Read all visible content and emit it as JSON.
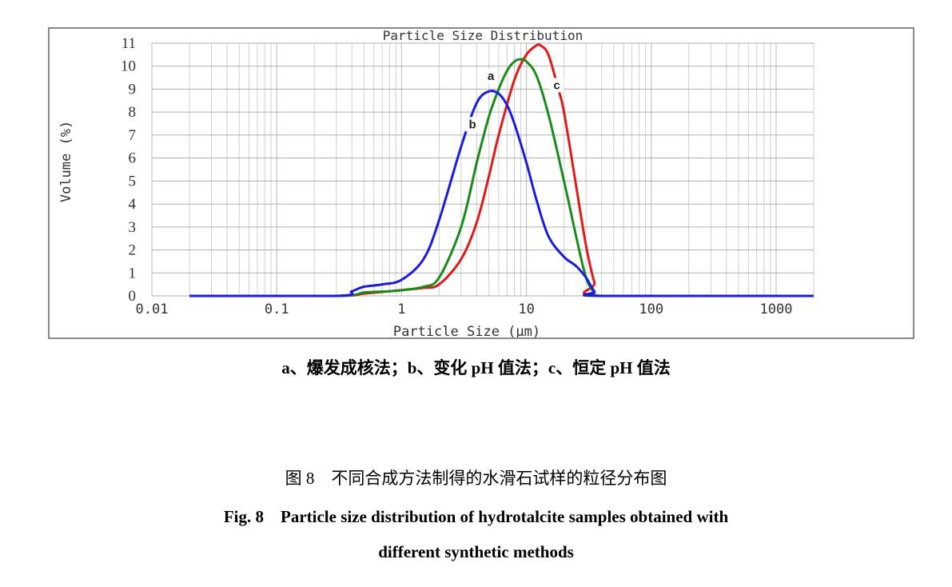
{
  "chart_data": {
    "type": "line",
    "title": "Particle Size Distribution",
    "xlabel": "Particle Size (μm)",
    "ylabel": "Volume (%)",
    "x_scale": "log",
    "xlim": [
      0.01,
      2000
    ],
    "ylim": [
      0,
      11
    ],
    "x_ticks": [
      0.01,
      0.1,
      1,
      10,
      100,
      1000
    ],
    "x_tick_labels": [
      "0.01",
      "0.1",
      "1",
      "10",
      "100",
      "1000"
    ],
    "y_ticks": [
      0,
      1,
      2,
      3,
      4,
      5,
      6,
      7,
      8,
      9,
      10,
      11
    ],
    "y_tick_labels": [
      "0",
      "1",
      "2",
      "3",
      "4",
      "5",
      "6",
      "7",
      "8",
      "9",
      "10",
      "11"
    ],
    "grid": true,
    "series": [
      {
        "name": "a",
        "color": "#1a8a1a",
        "x": [
          0.02,
          0.3,
          0.5,
          0.8,
          1.0,
          1.5,
          2.0,
          3.0,
          4.0,
          5.0,
          6.0,
          7.0,
          8.0,
          9.0,
          10.0,
          12.0,
          15.0,
          20.0,
          25.0,
          30.0,
          35.0,
          40.0,
          2000
        ],
        "y": [
          0,
          0,
          0.15,
          0.2,
          0.25,
          0.4,
          0.8,
          3.0,
          5.8,
          7.8,
          9.0,
          9.8,
          10.2,
          10.3,
          10.2,
          9.6,
          7.9,
          5.0,
          2.6,
          0.8,
          0.15,
          0,
          0
        ]
      },
      {
        "name": "b",
        "color": "#1a1ae0",
        "x": [
          0.02,
          0.3,
          0.4,
          0.5,
          0.7,
          1.0,
          1.5,
          2.0,
          3.0,
          4.0,
          5.0,
          6.0,
          7.0,
          8.0,
          10.0,
          12.0,
          15.0,
          20.0,
          25.0,
          30.0,
          35.0,
          40.0,
          2000
        ],
        "y": [
          0,
          0,
          0.2,
          0.4,
          0.5,
          0.7,
          1.6,
          3.3,
          6.5,
          8.4,
          8.9,
          8.8,
          8.3,
          7.5,
          5.8,
          4.2,
          2.6,
          1.7,
          1.3,
          0.8,
          0.2,
          0,
          0
        ]
      },
      {
        "name": "c",
        "color": "#e01a1a",
        "x": [
          0.02,
          0.3,
          0.5,
          1.0,
          1.5,
          2.0,
          3.0,
          4.0,
          5.0,
          6.0,
          8.0,
          10.0,
          12.0,
          13.0,
          15.0,
          18.0,
          20.0,
          25.0,
          30.0,
          35.0,
          40.0,
          2000
        ],
        "y": [
          0,
          0,
          0.1,
          0.25,
          0.35,
          0.5,
          1.6,
          3.2,
          5.2,
          7.0,
          9.4,
          10.5,
          10.9,
          10.9,
          10.5,
          9.0,
          8.0,
          4.8,
          2.2,
          0.6,
          0,
          0
        ]
      }
    ]
  },
  "captions": {
    "legend": "a、爆发成核法；b、变化 pH 值法；c、恒定 pH 值法",
    "figure_number_zh": "图 8　不同合成方法制得的水滑石试样的粒径分布图",
    "figure_title_en_line1": "Fig. 8　Particle size distribution of hydrotalcite samples obtained with",
    "figure_title_en_line2": "different synthetic methods"
  }
}
